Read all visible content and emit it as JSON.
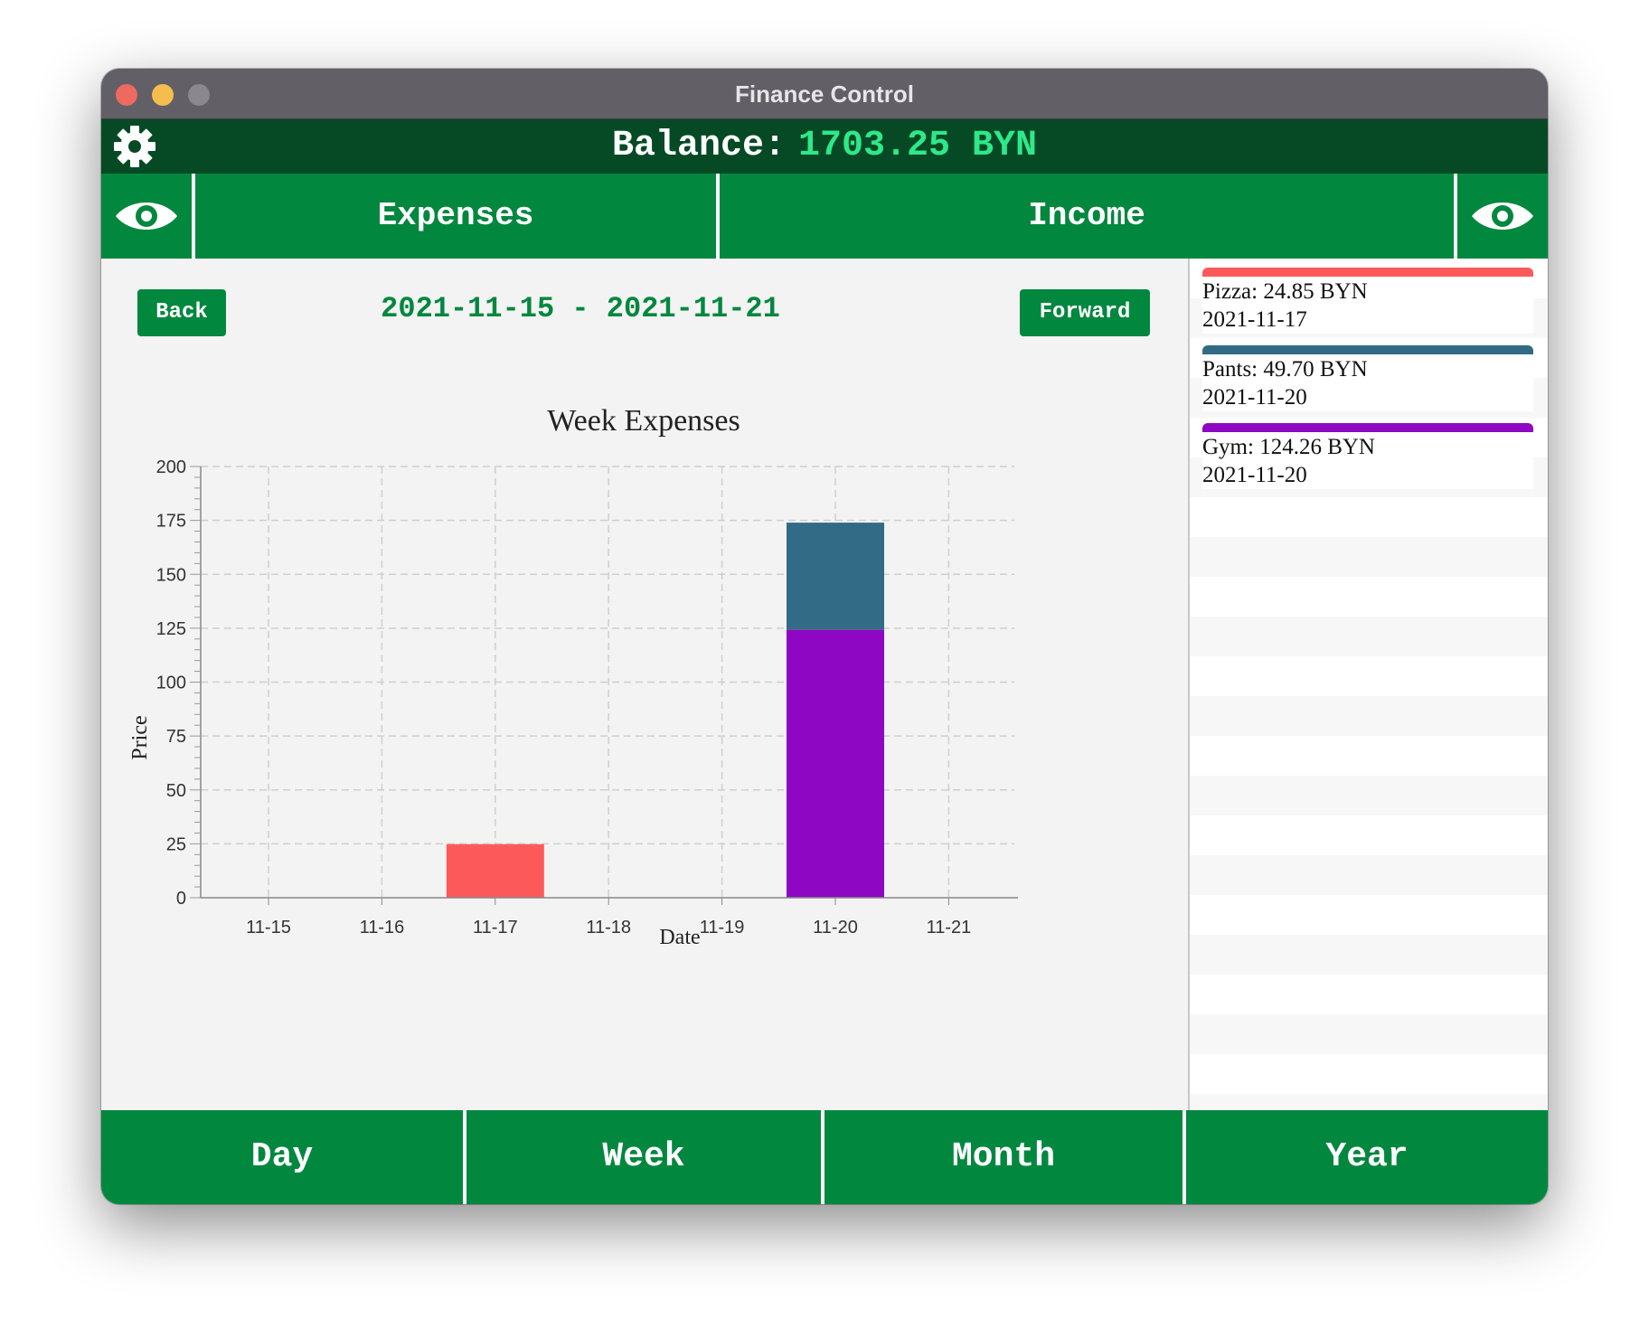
{
  "window": {
    "title": "Finance Control"
  },
  "header": {
    "balance_label": "Balance:",
    "balance_value": "1703.25 BYN",
    "settings_icon": "gear-icon"
  },
  "tabs": {
    "expenses": "Expenses",
    "income": "Income",
    "eye_icon": "eye-icon"
  },
  "nav": {
    "back": "Back",
    "forward": "Forward",
    "range": "2021-11-15 - 2021-11-21"
  },
  "chart_data": {
    "type": "bar",
    "stacked": true,
    "title": "Week Expenses",
    "xlabel": "Date",
    "ylabel": "Price",
    "categories": [
      "11-15",
      "11-16",
      "11-17",
      "11-18",
      "11-19",
      "11-20",
      "11-21"
    ],
    "ylim": [
      0,
      200
    ],
    "yticks": [
      0,
      25,
      50,
      75,
      100,
      125,
      150,
      175,
      200
    ],
    "grid": true,
    "segments": [
      {
        "name": "Pizza",
        "category": "11-17",
        "value": 24.85,
        "color": "#fc5a5a"
      },
      {
        "name": "Gym",
        "category": "11-20",
        "value": 124.26,
        "color": "#8e08c4"
      },
      {
        "name": "Pants",
        "category": "11-20",
        "value": 49.7,
        "color": "#326b85"
      }
    ]
  },
  "entries": [
    {
      "line1": "Pizza: 24.85 BYN",
      "line2": "2021-11-17",
      "color": "#fc5a5a"
    },
    {
      "line1": "Pants: 49.70 BYN",
      "line2": "2021-11-20",
      "color": "#326b85"
    },
    {
      "line1": "Gym: 124.26 BYN",
      "line2": "2021-11-20",
      "color": "#8e08c4"
    }
  ],
  "periods": {
    "day": "Day",
    "week": "Week",
    "month": "Month",
    "year": "Year"
  }
}
